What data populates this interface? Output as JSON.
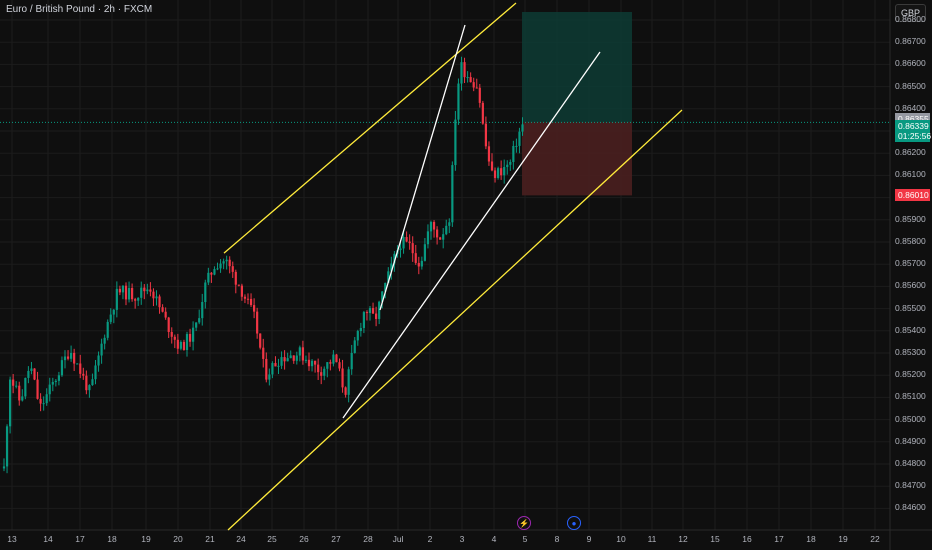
{
  "symbol": {
    "title": "Euro / British Pound · 2h · FXCM",
    "currency": "GBP"
  },
  "price_axis": {
    "ticks": [
      "0.86800",
      "0.86700",
      "0.86600",
      "0.86500",
      "0.86400",
      "0.86300",
      "0.86200",
      "0.86100",
      "0.86000",
      "0.85900",
      "0.85800",
      "0.85700",
      "0.85600",
      "0.85500",
      "0.85400",
      "0.85300",
      "0.85200",
      "0.85100",
      "0.85000",
      "0.84900",
      "0.84800",
      "0.84700",
      "0.84600"
    ],
    "tick_values": [
      0.868,
      0.867,
      0.866,
      0.865,
      0.864,
      0.863,
      0.862,
      0.861,
      0.86,
      0.859,
      0.858,
      0.857,
      0.856,
      0.855,
      0.854,
      0.853,
      0.852,
      0.851,
      0.85,
      0.849,
      0.848,
      0.847,
      0.846
    ]
  },
  "tags": {
    "reference": {
      "value": "0.86355",
      "price": 0.86355,
      "color": "#9598a1"
    },
    "last": {
      "value": "0.86339",
      "price": 0.86339,
      "countdown": "01:25:56",
      "color": "#089981"
    },
    "stop": {
      "value": "0.86010",
      "price": 0.8601,
      "color": "#f23645"
    }
  },
  "time_axis": {
    "labels": [
      "13",
      "14",
      "17",
      "18",
      "19",
      "20",
      "21",
      "24",
      "25",
      "26",
      "27",
      "28",
      "Jul",
      "2",
      "3",
      "4",
      "5",
      "8",
      "9",
      "10",
      "11",
      "12",
      "15",
      "16",
      "17",
      "18",
      "19",
      "22"
    ]
  },
  "events": [
    {
      "name": "lightning-event-icon",
      "glyph": "⚡",
      "color": "#9c27b0"
    },
    {
      "name": "globe-event-icon",
      "glyph": "●",
      "color": "#2962ff"
    }
  ],
  "chart_data": {
    "type": "candlestick",
    "title": "Euro / British Pound · 2h · FXCM",
    "ylim": [
      0.8459,
      0.8691
    ],
    "trend_channel_upper": {
      "from": [
        "21",
        0.8575
      ],
      "to": [
        "3",
        0.8691
      ],
      "color": "#ffeb3b"
    },
    "trend_channel_lower": {
      "from": [
        "27",
        0.8459
      ],
      "to": [
        "12",
        0.8654
      ],
      "color": "#ffeb3b"
    },
    "white_lines": [
      {
        "from": [
          "28",
          0.8556
        ],
        "to": [
          "2",
          0.8681
        ]
      },
      {
        "from": [
          "27",
          0.8511
        ],
        "to": [
          "9",
          0.8667
        ]
      }
    ],
    "position": {
      "entry": 0.8634,
      "take_profit": 0.8689,
      "stop": 0.8601,
      "bull_color": "#0d3b34",
      "bear_color": "#4a1f1f"
    },
    "up_color": "#089981",
    "down_color": "#f23645"
  }
}
